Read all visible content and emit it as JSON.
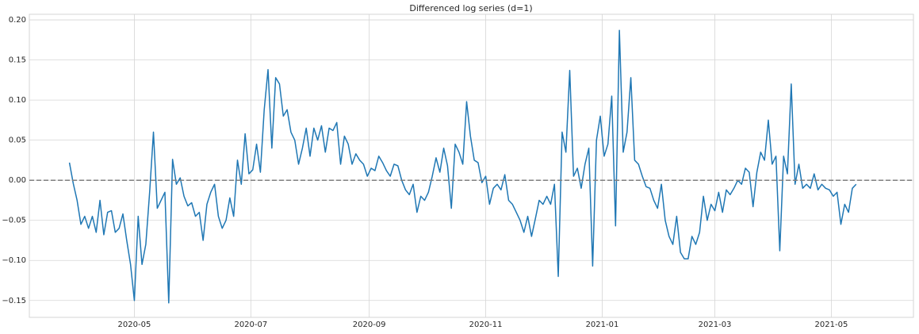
{
  "chart_data": {
    "type": "line",
    "title": "Differenced log series (d=1)",
    "color": "#1f77b4",
    "grid": true,
    "reference_line": {
      "value": 0,
      "color": "#808080",
      "style": "dashed"
    },
    "xlim": [
      66,
      529
    ],
    "xticks": [
      {
        "value": 121,
        "label": "2020-05"
      },
      {
        "value": 182,
        "label": "2020-07"
      },
      {
        "value": 244,
        "label": "2020-09"
      },
      {
        "value": 305,
        "label": "2020-11"
      },
      {
        "value": 366,
        "label": "2021-01"
      },
      {
        "value": 425,
        "label": "2021-03"
      },
      {
        "value": 486,
        "label": "2021-05"
      }
    ],
    "ylim": [
      -0.171,
      0.207
    ],
    "yticks": [
      {
        "value": -0.15,
        "label": "−0.15"
      },
      {
        "value": -0.1,
        "label": "−0.10"
      },
      {
        "value": -0.05,
        "label": "−0.05"
      },
      {
        "value": 0,
        "label": "0.00"
      },
      {
        "value": 0.05,
        "label": "0.05"
      },
      {
        "value": 0.1,
        "label": "0.10"
      },
      {
        "value": 0.15,
        "label": "0.15"
      },
      {
        "value": 0.2,
        "label": "0.20"
      }
    ],
    "x": [
      87,
      89,
      91,
      93,
      95,
      97,
      99,
      101,
      103,
      105,
      107,
      109,
      111,
      113,
      115,
      117,
      119,
      121,
      123,
      125,
      127,
      129,
      131,
      133,
      135,
      137,
      139,
      141,
      143,
      145,
      147,
      149,
      151,
      153,
      155,
      157,
      159,
      161,
      163,
      165,
      167,
      169,
      171,
      173,
      175,
      177,
      179,
      181,
      183,
      185,
      187,
      189,
      191,
      193,
      195,
      197,
      199,
      201,
      203,
      205,
      207,
      209,
      211,
      213,
      215,
      217,
      219,
      221,
      223,
      225,
      227,
      229,
      231,
      233,
      235,
      237,
      239,
      241,
      243,
      245,
      247,
      249,
      251,
      253,
      255,
      257,
      259,
      261,
      263,
      265,
      267,
      269,
      271,
      273,
      275,
      277,
      279,
      281,
      283,
      285,
      287,
      289,
      291,
      293,
      295,
      297,
      299,
      301,
      303,
      305,
      307,
      309,
      311,
      313,
      315,
      317,
      319,
      321,
      323,
      325,
      327,
      329,
      331,
      333,
      335,
      337,
      339,
      341,
      343,
      345,
      347,
      349,
      351,
      353,
      355,
      357,
      359,
      361,
      363,
      365,
      367,
      369,
      371,
      373,
      375,
      377,
      379,
      381,
      383,
      385,
      387,
      389,
      391,
      393,
      395,
      397,
      399,
      401,
      403,
      405,
      407,
      409,
      411,
      413,
      415,
      417,
      419,
      421,
      423,
      425,
      427,
      429,
      431,
      433,
      435,
      437,
      439,
      441,
      443,
      445,
      447,
      449,
      451,
      453,
      455,
      457,
      459,
      461,
      463,
      465,
      467,
      469,
      471,
      473,
      475,
      477,
      479,
      481,
      483,
      485,
      487,
      489,
      491,
      493,
      495,
      497,
      499
    ],
    "values": [
      0.022,
      -0.004,
      -0.025,
      -0.055,
      -0.045,
      -0.06,
      -0.045,
      -0.065,
      -0.025,
      -0.068,
      -0.04,
      -0.038,
      -0.065,
      -0.06,
      -0.042,
      -0.075,
      -0.105,
      -0.15,
      -0.045,
      -0.105,
      -0.08,
      -0.015,
      0.06,
      -0.035,
      -0.025,
      -0.015,
      -0.153,
      0.026,
      -0.005,
      0.003,
      -0.02,
      -0.032,
      -0.028,
      -0.045,
      -0.04,
      -0.075,
      -0.03,
      -0.015,
      -0.005,
      -0.045,
      -0.06,
      -0.05,
      -0.022,
      -0.045,
      0.025,
      -0.005,
      0.058,
      0.008,
      0.013,
      0.045,
      0.01,
      0.088,
      0.138,
      0.04,
      0.128,
      0.12,
      0.08,
      0.088,
      0.06,
      0.05,
      0.02,
      0.04,
      0.065,
      0.03,
      0.065,
      0.05,
      0.068,
      0.035,
      0.065,
      0.062,
      0.072,
      0.02,
      0.055,
      0.045,
      0.02,
      0.033,
      0.025,
      0.02,
      0.005,
      0.015,
      0.012,
      0.03,
      0.022,
      0.012,
      0.005,
      0.02,
      0.018,
      0.0,
      -0.012,
      -0.018,
      -0.005,
      -0.04,
      -0.02,
      -0.025,
      -0.015,
      0.005,
      0.028,
      0.01,
      0.04,
      0.018,
      -0.035,
      0.045,
      0.035,
      0.02,
      0.098,
      0.055,
      0.025,
      0.022,
      -0.003,
      0.005,
      -0.03,
      -0.01,
      -0.005,
      -0.012,
      0.007,
      -0.025,
      -0.03,
      -0.04,
      -0.05,
      -0.065,
      -0.045,
      -0.07,
      -0.048,
      -0.025,
      -0.03,
      -0.02,
      -0.03,
      -0.005,
      -0.12,
      0.06,
      0.035,
      0.137,
      0.005,
      0.015,
      -0.01,
      0.02,
      0.04,
      -0.107,
      0.05,
      0.08,
      0.03,
      0.045,
      0.105,
      -0.057,
      0.187,
      0.035,
      0.06,
      0.128,
      0.025,
      0.02,
      0.005,
      -0.008,
      -0.01,
      -0.025,
      -0.035,
      -0.005,
      -0.05,
      -0.07,
      -0.08,
      -0.045,
      -0.09,
      -0.098,
      -0.098,
      -0.07,
      -0.08,
      -0.065,
      -0.02,
      -0.05,
      -0.03,
      -0.038,
      -0.015,
      -0.04,
      -0.012,
      -0.018,
      -0.01,
      0.0,
      -0.005,
      0.015,
      0.01,
      -0.033,
      0.01,
      0.035,
      0.025,
      0.075,
      0.02,
      0.03,
      -0.088,
      0.03,
      0.008,
      0.12,
      -0.005,
      0.02,
      -0.01,
      -0.005,
      -0.01,
      0.008,
      -0.012,
      -0.005,
      -0.01,
      -0.012,
      -0.02,
      -0.015,
      -0.055,
      -0.03,
      -0.04,
      -0.01,
      -0.005
    ]
  }
}
